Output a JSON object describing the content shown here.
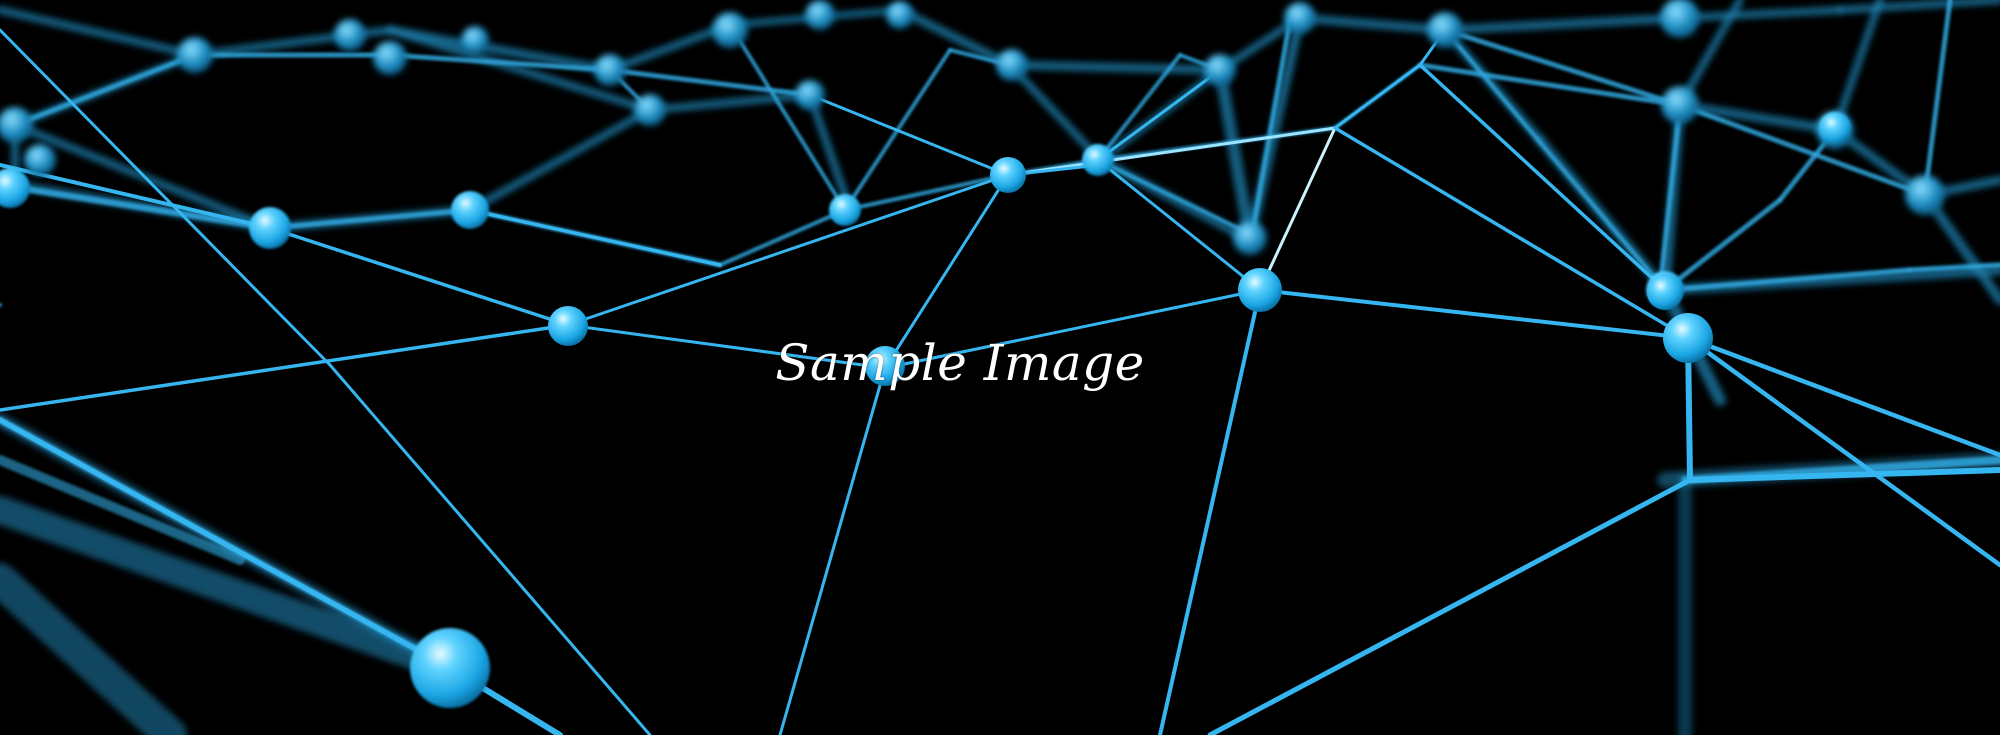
{
  "image": {
    "caption": "Sample Image",
    "background_color": "#000000",
    "accent_color": "#2fb4ef",
    "highlight_color": "#bff0ff"
  }
}
